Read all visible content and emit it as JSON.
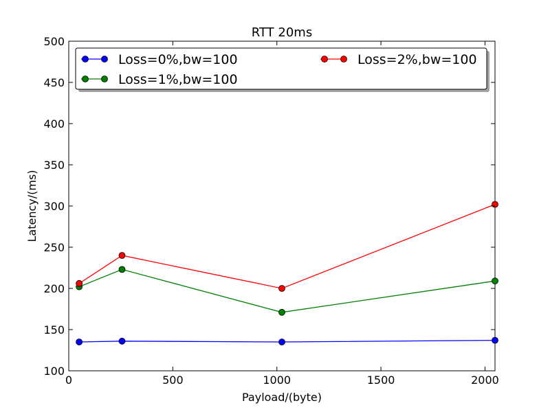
{
  "chart_data": {
    "type": "line",
    "title": "RTT 20ms",
    "xlabel": "Payload/(byte)",
    "ylabel": "Latency/(ms)",
    "xlim": [
      0,
      2048
    ],
    "ylim": [
      100,
      500
    ],
    "xticks": [
      0,
      500,
      1000,
      1500,
      2000
    ],
    "yticks": [
      100,
      150,
      200,
      250,
      300,
      350,
      400,
      450,
      500
    ],
    "grid": false,
    "legend_position": "top",
    "series": [
      {
        "name": "Loss=0%,bw=100",
        "color": "#0000ff",
        "x": [
          50,
          256,
          1024,
          2048
        ],
        "y": [
          135,
          136,
          135,
          137
        ]
      },
      {
        "name": "Loss=1%,bw=100",
        "color": "#008000",
        "x": [
          50,
          256,
          1024,
          2048
        ],
        "y": [
          202,
          223,
          171,
          209
        ]
      },
      {
        "name": "Loss=2%,bw=100",
        "color": "#ff0000",
        "x": [
          50,
          256,
          1024,
          2048
        ],
        "y": [
          206,
          240,
          200,
          302
        ]
      }
    ]
  }
}
